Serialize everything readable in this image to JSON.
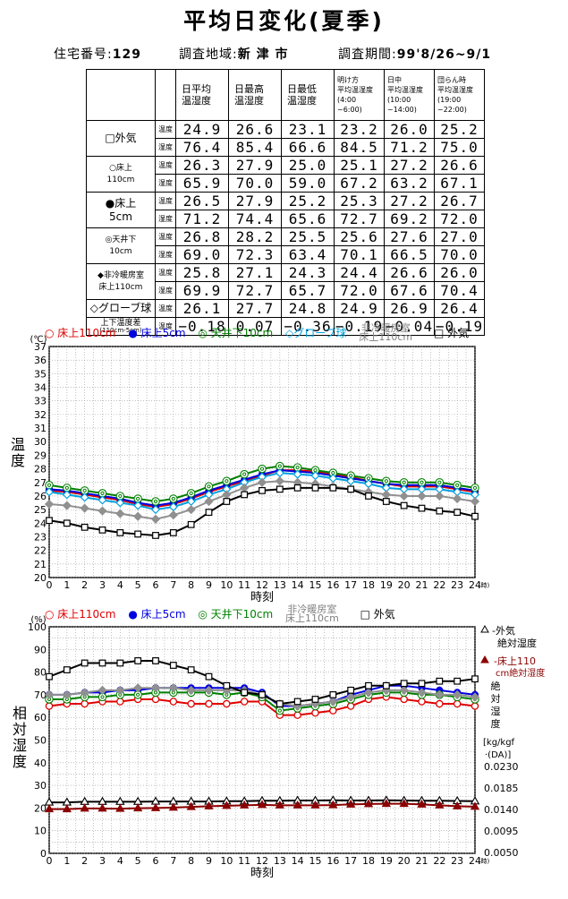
{
  "title": "平均日変化(夏季)",
  "info": {
    "house_label": "住宅番号:",
    "house_no": "129",
    "area_label": "調査地域:",
    "area": "新 津 市",
    "period_label": "調査期間:",
    "period": "99'8/26~9/1"
  },
  "table": {
    "headers": [
      "日平均\n温湿度",
      "日最高\n温湿度",
      "日最低\n温湿度",
      "明け方\n平均温湿度\n(4:00\n~6:00)",
      "日中\n平均温湿度\n(10:00\n~14:00)",
      "団らん時\n平均温湿度\n(19:00\n~22:00)"
    ],
    "temp_label": "温度",
    "hum_label": "湿度",
    "rows": [
      {
        "name": "□外気",
        "temp": [
          "24.9",
          "26.6",
          "23.1",
          "23.2",
          "26.0",
          "25.2"
        ],
        "hum": [
          "76.4",
          "85.4",
          "66.6",
          "84.5",
          "71.2",
          "75.0"
        ]
      },
      {
        "name": "○床上\n110cm",
        "temp": [
          "26.3",
          "27.9",
          "25.0",
          "25.1",
          "27.2",
          "26.6"
        ],
        "hum": [
          "65.9",
          "70.0",
          "59.0",
          "67.2",
          "63.2",
          "67.1"
        ]
      },
      {
        "name": "●床上\n5cm",
        "temp": [
          "26.5",
          "27.9",
          "25.2",
          "25.3",
          "27.2",
          "26.7"
        ],
        "hum": [
          "71.2",
          "74.4",
          "65.6",
          "72.7",
          "69.2",
          "72.0"
        ]
      },
      {
        "name": "◎天井下\n10cm",
        "temp": [
          "26.8",
          "28.2",
          "25.5",
          "25.6",
          "27.6",
          "27.0"
        ],
        "hum": [
          "69.0",
          "72.3",
          "63.4",
          "70.1",
          "66.5",
          "70.0"
        ]
      },
      {
        "name": "◆非冷暖房室\n床上110cm",
        "temp": [
          "25.8",
          "27.1",
          "24.3",
          "24.4",
          "26.6",
          "26.0"
        ],
        "hum": [
          "69.9",
          "72.7",
          "65.7",
          "72.0",
          "67.6",
          "70.4"
        ]
      },
      {
        "name": "◇グローブ球",
        "temp": [
          "26.1",
          "27.7",
          "24.8",
          "24.9",
          "26.9",
          "26.4"
        ]
      }
    ],
    "diff": {
      "name": "上下温度差",
      "sub": "(110cm-5cm)",
      "vals": [
        "−0.18",
        "0.07",
        "−0.36",
        "−0.19",
        "−0.04",
        "−0.19"
      ]
    }
  },
  "temp_legend": {
    "s1": "○ 床上110cm",
    "s2": "● 床上5cm",
    "s3": "◎ 天井下10cm",
    "s4": "◇グローブ球",
    "s5a": "非冷暖房室",
    "s5b": "床上110cm",
    "s6": "□ 外気"
  },
  "hum_legend": {
    "s1": "○ 床上110cm",
    "s2": "● 床上5cm",
    "s3": "◎ 天井下10cm",
    "s5a": "非冷暖房室",
    "s5b": "床上110cm",
    "s6": "□ 外気"
  },
  "chart_data": [
    {
      "type": "line",
      "ylabel": "温度",
      "yunit": "(℃)",
      "xlabel": "時刻",
      "xunit": "(時)",
      "ylim": [
        20,
        37
      ],
      "xlim": [
        0,
        24
      ],
      "x": [
        0,
        1,
        2,
        3,
        4,
        5,
        6,
        7,
        8,
        9,
        10,
        11,
        12,
        13,
        14,
        15,
        16,
        17,
        18,
        19,
        20,
        21,
        22,
        23,
        24
      ],
      "series": [
        {
          "name": "床上110cm",
          "color": "#e00000",
          "marker": "circle-open",
          "values": [
            26.4,
            26.3,
            26.1,
            25.9,
            25.7,
            25.4,
            25.2,
            25.4,
            25.8,
            26.3,
            26.7,
            27.1,
            27.5,
            27.9,
            27.9,
            27.8,
            27.6,
            27.4,
            27.1,
            26.9,
            26.7,
            26.7,
            26.7,
            26.5,
            26.3
          ]
        },
        {
          "name": "床上5cm",
          "color": "#0000e0",
          "marker": "circle-filled",
          "values": [
            26.5,
            26.4,
            26.2,
            26.0,
            25.8,
            25.5,
            25.3,
            25.5,
            25.9,
            26.4,
            26.8,
            27.2,
            27.6,
            27.9,
            27.8,
            27.7,
            27.5,
            27.3,
            27.1,
            26.9,
            26.8,
            26.8,
            26.8,
            26.6,
            26.4
          ]
        },
        {
          "name": "天井下10cm",
          "color": "#008000",
          "marker": "circle-double",
          "values": [
            26.8,
            26.6,
            26.4,
            26.2,
            26.0,
            25.8,
            25.6,
            25.8,
            26.2,
            26.7,
            27.1,
            27.6,
            28.0,
            28.2,
            28.1,
            27.9,
            27.7,
            27.5,
            27.3,
            27.1,
            27.0,
            27.0,
            27.0,
            26.8,
            26.6
          ]
        },
        {
          "name": "グローブ球",
          "color": "#00a0e0",
          "marker": "diamond-open",
          "values": [
            26.3,
            26.1,
            25.9,
            25.7,
            25.5,
            25.3,
            25.0,
            25.2,
            25.6,
            26.1,
            26.5,
            27.0,
            27.4,
            27.7,
            27.6,
            27.5,
            27.3,
            27.1,
            26.9,
            26.6,
            26.5,
            26.5,
            26.5,
            26.3,
            26.1
          ]
        },
        {
          "name": "非冷暖房室 床上110cm",
          "color": "#909090",
          "marker": "diamond-filled",
          "values": [
            25.4,
            25.3,
            25.1,
            24.9,
            24.7,
            24.5,
            24.3,
            24.6,
            25.0,
            25.6,
            26.1,
            26.6,
            27.0,
            27.1,
            27.0,
            26.9,
            26.7,
            26.5,
            26.3,
            26.1,
            26.0,
            26.0,
            26.0,
            25.8,
            25.6
          ]
        },
        {
          "name": "外気",
          "color": "#000000",
          "marker": "square-open",
          "values": [
            24.2,
            24.0,
            23.7,
            23.5,
            23.3,
            23.2,
            23.1,
            23.3,
            23.9,
            24.8,
            25.6,
            26.1,
            26.4,
            26.5,
            26.6,
            26.6,
            26.6,
            26.5,
            26.0,
            25.6,
            25.3,
            25.1,
            24.9,
            24.8,
            24.5
          ]
        }
      ]
    },
    {
      "type": "line",
      "ylabel": "相対湿度",
      "yunit": "(%)",
      "xlabel": "時刻",
      "xunit": "(時)",
      "ylim": [
        0,
        100
      ],
      "xlim": [
        0,
        24
      ],
      "y2label": "絶対湿度",
      "y2unit": "[kg/kgf・(DA)]",
      "y2ticks": [
        "0.0050",
        "0.0095",
        "0.0140",
        "0.0185",
        "0.0230"
      ],
      "y2_series_labels": {
        "a": "外気\n絶対湿度",
        "b": "床上110\ncm絶対湿度"
      },
      "x": [
        0,
        1,
        2,
        3,
        4,
        5,
        6,
        7,
        8,
        9,
        10,
        11,
        12,
        13,
        14,
        15,
        16,
        17,
        18,
        19,
        20,
        21,
        22,
        23,
        24
      ],
      "series": [
        {
          "name": "床上110cm",
          "color": "#e00000",
          "marker": "circle-open",
          "values": [
            65,
            66,
            66,
            67,
            67,
            68,
            68,
            67,
            66,
            66,
            66,
            67,
            67,
            61,
            61,
            62,
            63,
            65,
            68,
            69,
            68,
            67,
            66,
            66,
            65
          ]
        },
        {
          "name": "床上5cm",
          "color": "#0000e0",
          "marker": "circle-filled",
          "values": [
            70,
            70,
            71,
            71,
            72,
            72,
            73,
            73,
            73,
            73,
            73,
            73,
            71,
            65,
            65,
            66,
            67,
            70,
            72,
            74,
            74,
            73,
            72,
            71,
            70
          ]
        },
        {
          "name": "天井下10cm",
          "color": "#008000",
          "marker": "circle-double",
          "values": [
            68,
            68,
            69,
            69,
            70,
            70,
            71,
            71,
            71,
            71,
            70,
            71,
            69,
            63,
            64,
            65,
            66,
            68,
            70,
            71,
            71,
            70,
            70,
            69,
            68
          ]
        },
        {
          "name": "非冷暖房室 床上110cm",
          "color": "#909090",
          "marker": "diamond-filled",
          "values": [
            70,
            70,
            71,
            72,
            72,
            73,
            73,
            73,
            72,
            72,
            72,
            72,
            70,
            66,
            65,
            66,
            67,
            69,
            71,
            72,
            72,
            71,
            70,
            70,
            69
          ]
        },
        {
          "name": "外気",
          "color": "#000000",
          "marker": "square-open",
          "values": [
            78,
            81,
            84,
            84,
            84,
            85,
            85,
            83,
            81,
            78,
            74,
            71,
            70,
            66,
            67,
            68,
            70,
            72,
            74,
            74,
            75,
            75,
            76,
            76,
            77
          ]
        },
        {
          "name": "外気 絶対湿度",
          "color": "#000000",
          "marker": "triangle-open",
          "values": [
            22.5,
            22.5,
            22.8,
            22.8,
            22.8,
            22.8,
            22.9,
            22.9,
            22.9,
            22.9,
            23,
            23,
            23.2,
            23.2,
            23.3,
            23.3,
            23.4,
            23.3,
            23.3,
            23.4,
            23.3,
            23.2,
            23.2,
            23.1,
            23
          ]
        },
        {
          "name": "床上110cm 絶対湿度",
          "color": "#8b0000",
          "marker": "triangle-filled",
          "values": [
            19.5,
            19.5,
            19.8,
            19.8,
            19.7,
            19.9,
            20.0,
            20.2,
            20.5,
            20.8,
            21,
            21.2,
            21.4,
            21.2,
            21.2,
            21.2,
            21.3,
            21.6,
            21.8,
            21.9,
            21.9,
            21.6,
            21.2,
            20.8,
            20.6
          ]
        }
      ]
    }
  ]
}
